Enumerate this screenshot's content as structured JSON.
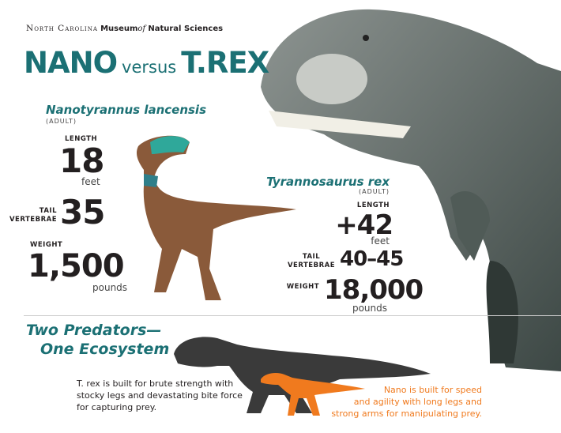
{
  "header": {
    "org_part1": "North Carolina",
    "org_part2": "Museum",
    "org_part3": "of",
    "org_part4": "Natural Sciences"
  },
  "title": {
    "left": "NANO",
    "middle": "versus",
    "right": "T.REX"
  },
  "nano": {
    "species": "Nanotyrannus lancensis",
    "stage": "(ADULT)",
    "length_label": "LENGTH",
    "length_value": "18",
    "length_unit": "feet",
    "tail_label_1": "TAIL",
    "tail_label_2": "VERTEBRAE",
    "tail_value": "35",
    "weight_label": "WEIGHT",
    "weight_value": "1,500",
    "weight_unit": "pounds"
  },
  "trex": {
    "species": "Tyrannosaurus rex",
    "stage": "(ADULT)",
    "length_label": "LENGTH",
    "length_value": "+42",
    "length_unit": "feet",
    "tail_label_1": "TAIL",
    "tail_label_2": "VERTEBRAE",
    "tail_value": "40–45",
    "weight_label": "WEIGHT",
    "weight_value": "18,000",
    "weight_unit": "pounds"
  },
  "ecosystem": {
    "heading_1": "Two Predators—",
    "heading_2": "One Ecosystem",
    "trex_text": [
      "T. rex is built for brute strength with",
      "stocky legs and devastating bite force",
      "for capturing prey."
    ],
    "nano_text": [
      "Nano is built for speed",
      "and agility with long legs and",
      "strong arms for manipulating prey."
    ]
  },
  "colors": {
    "teal": "#1b7074",
    "orange": "#f07a1e",
    "silhouette": "#3a3a3a"
  }
}
